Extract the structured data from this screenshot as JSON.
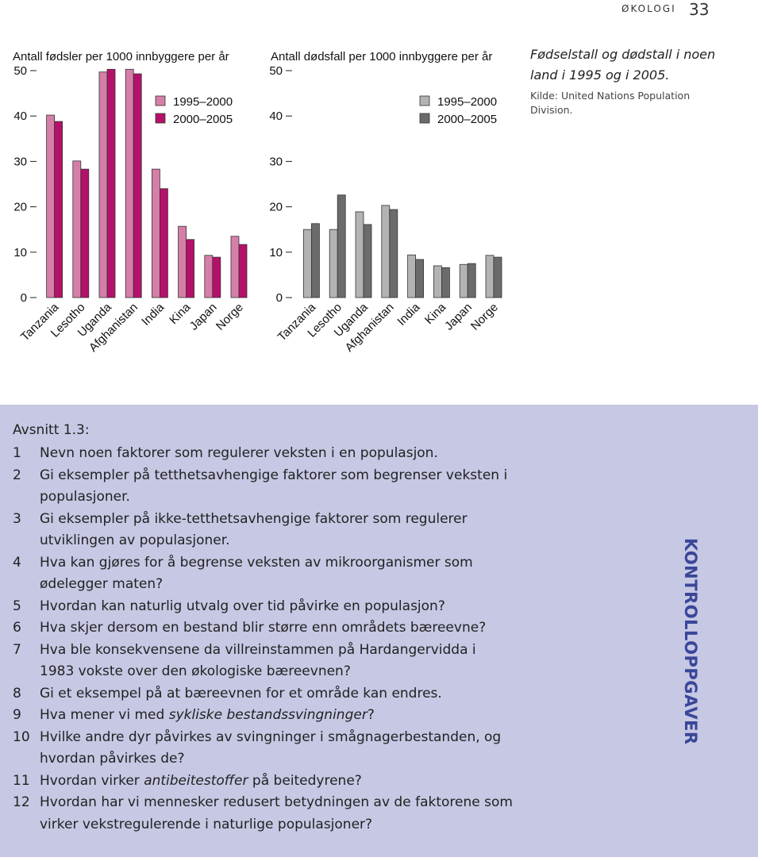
{
  "header": {
    "section": "ØKOLOGI",
    "page": "33"
  },
  "chart_data": [
    {
      "type": "bar",
      "title": "Antall fødsler per 1000 innbyggere per år",
      "categories": [
        "Tanzania",
        "Lesotho",
        "Uganda",
        "Afghanistan",
        "India",
        "Kina",
        "Japan",
        "Norge"
      ],
      "series": [
        {
          "name": "1995–2000",
          "color": "#d57fa8",
          "values": [
            40.2,
            30.1,
            49.7,
            50.3,
            28.3,
            15.7,
            9.3,
            13.5
          ]
        },
        {
          "name": "2000–2005",
          "color": "#b5106a",
          "values": [
            38.8,
            28.3,
            50.3,
            49.3,
            24.0,
            12.8,
            8.9,
            11.7
          ]
        }
      ],
      "ylim": [
        0,
        50
      ],
      "yticks": [
        0,
        10,
        20,
        30,
        40,
        50
      ]
    },
    {
      "type": "bar",
      "title": "Antall dødsfall per 1000 innbyggere per år",
      "categories": [
        "Tanzania",
        "Lesotho",
        "Uganda",
        "Afghanistan",
        "India",
        "Kina",
        "Japan",
        "Norge"
      ],
      "series": [
        {
          "name": "1995–2000",
          "color": "#b3b3b3",
          "values": [
            15.0,
            15.0,
            18.9,
            20.3,
            9.4,
            7.0,
            7.3,
            9.3
          ]
        },
        {
          "name": "2000–2005",
          "color": "#6b6b6b",
          "values": [
            16.3,
            22.6,
            16.1,
            19.4,
            8.4,
            6.6,
            7.5,
            8.9
          ]
        }
      ],
      "ylim": [
        0,
        50
      ],
      "yticks": [
        0,
        10,
        20,
        30,
        40,
        50
      ]
    }
  ],
  "caption": {
    "title": "Fødselstall og dødstall i noen land i 1995 og i 2005.",
    "source": "Kilde: United Nations Population Division."
  },
  "exercises": {
    "heading": "Avsnitt 1.3:",
    "label": "KONTROLLOPPGAVER",
    "questions": [
      {
        "number": "1",
        "parts": [
          {
            "text": "Nevn noen faktorer som regulerer veksten i en populasjon."
          }
        ]
      },
      {
        "number": "2",
        "parts": [
          {
            "text": "Gi eksempler på tetthetsavhengige faktorer som begrenser veksten i populasjoner."
          }
        ]
      },
      {
        "number": "3",
        "parts": [
          {
            "text": "Gi eksempler på ikke-tetthetsavhengige faktorer som regulerer utviklingen av populasjoner."
          }
        ]
      },
      {
        "number": "4",
        "parts": [
          {
            "text": "Hva kan gjøres for å begrense veksten av mikroorganismer som ødelegger maten?"
          }
        ]
      },
      {
        "number": "5",
        "parts": [
          {
            "text": "Hvordan kan naturlig utvalg over tid påvirke en populasjon?"
          }
        ]
      },
      {
        "number": "6",
        "parts": [
          {
            "text": "Hva skjer dersom en bestand blir større enn områdets bæreevne?"
          }
        ]
      },
      {
        "number": "7",
        "parts": [
          {
            "text": "Hva ble konsekvensene da villreinstammen på Hardangervidda i 1983 vokste over den økologiske bæreevnen?"
          }
        ]
      },
      {
        "number": "8",
        "parts": [
          {
            "text": "Gi et eksempel på at bæreevnen for et område kan endres."
          }
        ]
      },
      {
        "number": "9",
        "parts": [
          {
            "text": "Hva mener vi med "
          },
          {
            "text": "sykliske bestandssvingninger",
            "italic": true
          },
          {
            "text": "?"
          }
        ]
      },
      {
        "number": "10",
        "parts": [
          {
            "text": "Hvilke andre dyr påvirkes av svingninger i smågnagerbestanden, og hvordan påvirkes de?"
          }
        ]
      },
      {
        "number": "11",
        "parts": [
          {
            "text": "Hvordan virker "
          },
          {
            "text": "antibeitestoffer",
            "italic": true
          },
          {
            "text": " på beitedyrene?"
          }
        ]
      },
      {
        "number": "12",
        "parts": [
          {
            "text": "Hvordan har vi mennesker redusert betydningen av de faktorene som virker vekstregulerende i naturlige populasjoner?"
          }
        ]
      }
    ]
  }
}
